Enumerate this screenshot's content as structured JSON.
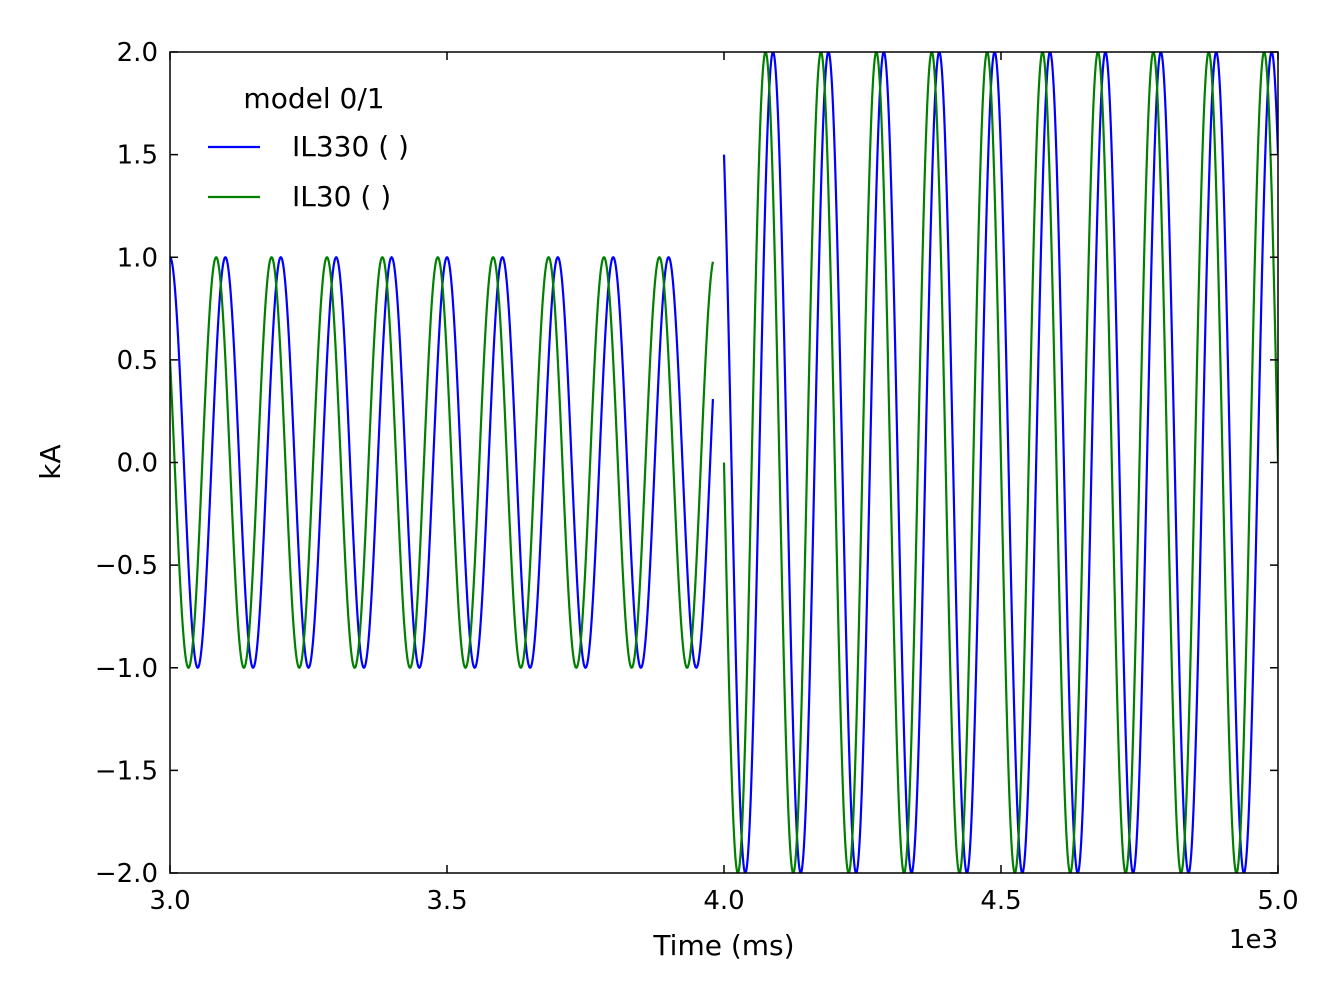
{
  "chart_data": {
    "type": "line",
    "title": "",
    "xlabel": "Time (ms)",
    "ylabel": "kA",
    "x_offset_label": "1e3",
    "xlim": [
      3.0,
      5.0
    ],
    "ylim": [
      -2.0,
      2.0
    ],
    "xticks": [
      "3.0",
      "3.5",
      "4.0",
      "4.5",
      "5.0"
    ],
    "yticks": [
      "2.0",
      "1.5",
      "1.0",
      "0.5",
      "0.0",
      "−0.5",
      "−1.0",
      "−1.5",
      "−2.0"
    ],
    "grid": false,
    "legend": {
      "title": "model 0/1",
      "placement": "top-left",
      "entries": [
        "IL330 ( )",
        "IL30 ( )"
      ]
    },
    "series": [
      {
        "name": "IL330 ( )",
        "color": "#0000ff",
        "frequency_per_unit_x": 10,
        "segments": [
          {
            "x_start": 3.0,
            "x_end": 3.98,
            "amplitude": 1.0,
            "value_at_start": 1.0
          },
          {
            "x_start": 4.0,
            "x_end": 5.0,
            "amplitude": 2.0,
            "value_at_start": 1.5
          }
        ]
      },
      {
        "name": "IL30 ( )",
        "color": "#008000",
        "frequency_per_unit_x": 10,
        "segments": [
          {
            "x_start": 3.0,
            "x_end": 3.98,
            "amplitude": 1.0,
            "value_at_start": 0.5
          },
          {
            "x_start": 4.0,
            "x_end": 5.0,
            "amplitude": 2.0,
            "value_at_start": 0.0
          }
        ]
      }
    ]
  }
}
